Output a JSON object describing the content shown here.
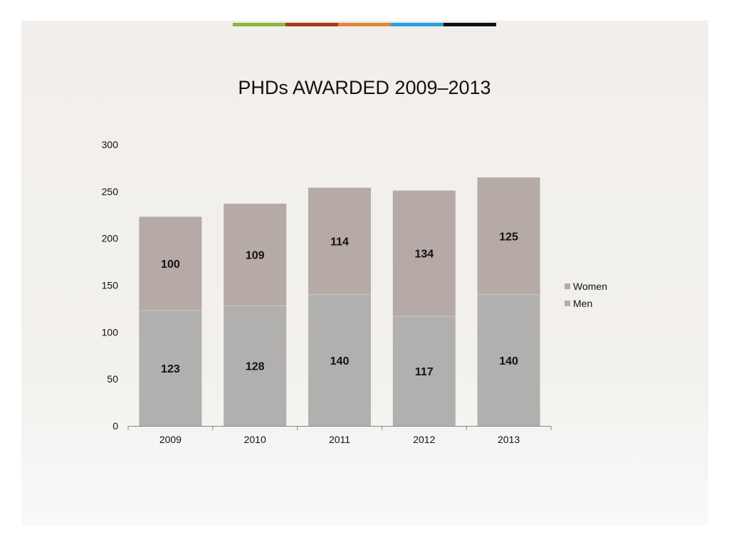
{
  "colors": {
    "women": "#b5aaa6",
    "men": "#b1b0ae",
    "axis": "#888888",
    "accent_bar": [
      "#8cb63c",
      "#a43a1e",
      "#e0873a",
      "#25a3de",
      "#111111"
    ]
  },
  "chart_data": {
    "type": "bar",
    "stacked": true,
    "title": "PHDs AWARDED 2009–2013",
    "xlabel": "",
    "ylabel": "",
    "categories": [
      "2009",
      "2010",
      "2011",
      "2012",
      "2013"
    ],
    "series": [
      {
        "name": "Men",
        "values": [
          123,
          128,
          140,
          117,
          140
        ]
      },
      {
        "name": "Women",
        "values": [
          100,
          109,
          114,
          134,
          125
        ]
      }
    ],
    "ylim": [
      0,
      300
    ],
    "yticks": [
      0,
      50,
      100,
      150,
      200,
      250,
      300
    ],
    "grid": false,
    "legend": "right"
  }
}
